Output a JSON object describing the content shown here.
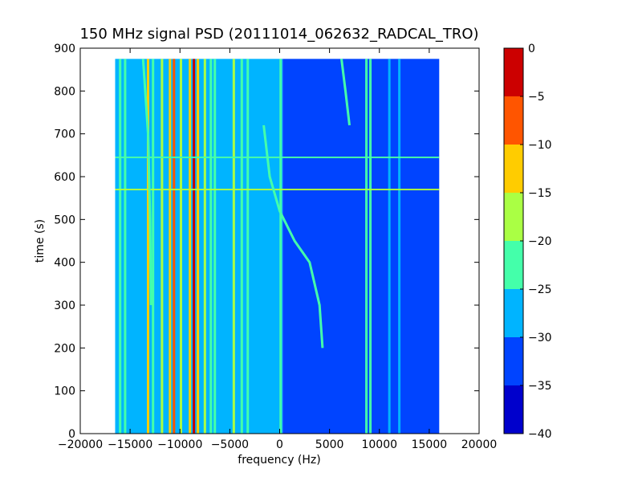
{
  "chart_data": {
    "type": "heatmap",
    "title": "150 MHz signal PSD (20111014_062632_RADCAL_TRO)",
    "xlabel": "frequency (Hz)",
    "ylabel": "time (s)",
    "xlim": [
      -20000,
      20000
    ],
    "ylim": [
      0,
      900
    ],
    "xticks": [
      -20000,
      -15000,
      -10000,
      -5000,
      0,
      5000,
      10000,
      15000,
      20000
    ],
    "yticks": [
      0,
      100,
      200,
      300,
      400,
      500,
      600,
      700,
      800,
      900
    ],
    "data_extent": {
      "x": [
        -16500,
        16000
      ],
      "y": [
        0,
        875
      ]
    },
    "colorbar": {
      "ticks": [
        0,
        -5,
        -10,
        -15,
        -20,
        -25,
        -30,
        -35,
        -40
      ],
      "levels": [
        {
          "from": -40,
          "to": -35,
          "color": "#0000cc"
        },
        {
          "from": -35,
          "to": -30,
          "color": "#0044ff"
        },
        {
          "from": -30,
          "to": -25,
          "color": "#00b4ff"
        },
        {
          "from": -25,
          "to": -20,
          "color": "#44ffaa"
        },
        {
          "from": -20,
          "to": -15,
          "color": "#aaff44"
        },
        {
          "from": -15,
          "to": -10,
          "color": "#ffcc00"
        },
        {
          "from": -10,
          "to": -5,
          "color": "#ff5500"
        },
        {
          "from": -5,
          "to": 0,
          "color": "#cc0000"
        }
      ]
    },
    "background_regions": [
      {
        "x": [
          -16500,
          300
        ],
        "level_db": -28
      },
      {
        "x": [
          300,
          16000
        ],
        "level_db": -33
      }
    ],
    "vertical_lines": [
      {
        "x": -16000,
        "level_db": -23
      },
      {
        "x": -15500,
        "level_db": -23
      },
      {
        "x": -13200,
        "level_db": -13
      },
      {
        "x": -12700,
        "level_db": -23
      },
      {
        "x": -11800,
        "level_db": -18
      },
      {
        "x": -11000,
        "level_db": -13
      },
      {
        "x": -10600,
        "level_db": -8
      },
      {
        "x": -9900,
        "level_db": -18
      },
      {
        "x": -9000,
        "level_db": -13
      },
      {
        "x": -8600,
        "level_db": -3
      },
      {
        "x": -8200,
        "level_db": -13
      },
      {
        "x": -7500,
        "level_db": -18
      },
      {
        "x": -6900,
        "level_db": -23
      },
      {
        "x": -6500,
        "level_db": -23
      },
      {
        "x": -4600,
        "level_db": -18
      },
      {
        "x": -3800,
        "level_db": -23
      },
      {
        "x": -3200,
        "level_db": -23
      },
      {
        "x": 100,
        "level_db": -23
      },
      {
        "x": 8700,
        "level_db": -23
      },
      {
        "x": 9100,
        "level_db": -23
      },
      {
        "x": 11000,
        "level_db": -28
      },
      {
        "x": 12000,
        "level_db": -28
      }
    ],
    "horizontal_lines": [
      {
        "y": 570,
        "level_db": -18
      },
      {
        "y": 645,
        "level_db": -23
      }
    ],
    "drift_tracks": [
      {
        "level_db": -23,
        "points": [
          [
            4300,
            200
          ],
          [
            4000,
            300
          ],
          [
            3000,
            400
          ],
          [
            1500,
            450
          ],
          [
            0,
            520
          ],
          [
            -1000,
            600
          ],
          [
            -1600,
            720
          ]
        ]
      },
      {
        "level_db": -23,
        "points": [
          [
            6200,
            875
          ],
          [
            6600,
            800
          ],
          [
            7000,
            720
          ]
        ]
      },
      {
        "level_db": -23,
        "points": [
          [
            -13700,
            875
          ],
          [
            -13200,
            700
          ],
          [
            -13000,
            500
          ],
          [
            -12900,
            300
          ]
        ]
      }
    ]
  }
}
